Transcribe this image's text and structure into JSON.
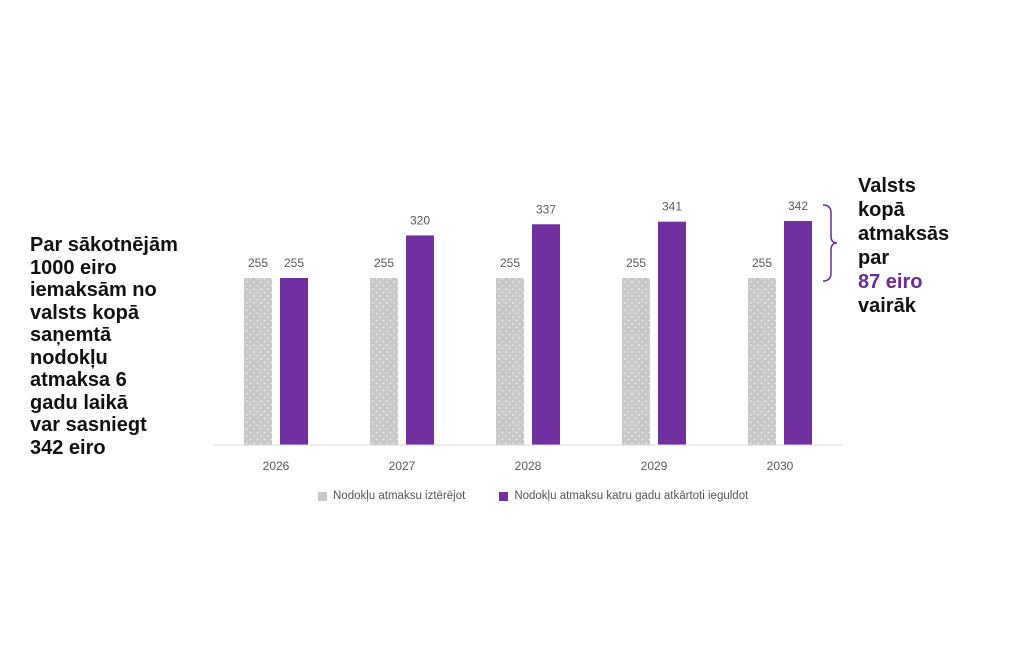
{
  "left_note": {
    "lines": [
      "Par sākotnējām",
      "1000 eiro",
      "iemaksām no",
      "valsts kopā",
      "saņemtā",
      "nodokļu",
      "atmaksa 6",
      "gadu laikā",
      "var sasniegt",
      "342 eiro"
    ]
  },
  "right_note": {
    "line1": "Valsts",
    "line2": "kopā",
    "line3": "atmaksās",
    "line4": "par",
    "line5_accent": "87 eiro",
    "line6": "vairāk"
  },
  "colors": {
    "series_gray": "#c8c8c8",
    "series_purple": "#7030a0",
    "accent_text": "#6a2c91"
  },
  "chart_data": {
    "type": "bar",
    "categories": [
      "2026",
      "2027",
      "2028",
      "2029",
      "2030"
    ],
    "series": [
      {
        "name": "Nodokļu atmaksu iztērējot",
        "values": [
          255,
          255,
          255,
          255,
          255
        ],
        "color": "#c8c8c8",
        "pattern": "dots"
      },
      {
        "name": "Nodokļu atmaksu katru gadu atkārtoti ieguldot",
        "values": [
          255,
          320,
          337,
          341,
          342
        ],
        "color": "#7030a0"
      }
    ],
    "data_labels": true,
    "ylim": [
      0,
      400
    ],
    "legend_position": "bottom",
    "grid": false,
    "annotation": {
      "type": "brace",
      "spans_series": "Nodokļu atmaksu katru gadu atkārtoti ieguldot",
      "category": "2030",
      "from_value": 255,
      "to_value": 342
    }
  }
}
